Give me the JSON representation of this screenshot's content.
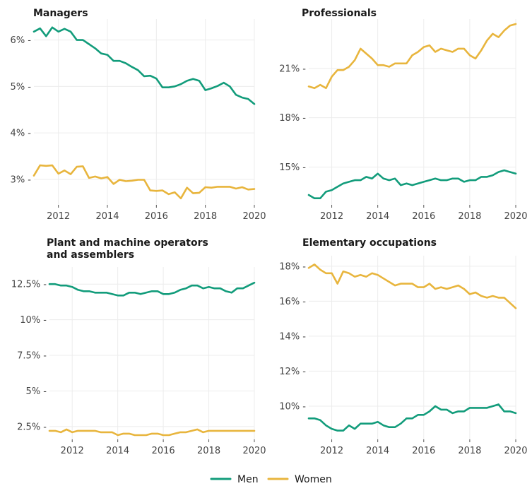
{
  "colors": {
    "men": "#129C7B",
    "women": "#E8B53D"
  },
  "legend": {
    "men_label": "Men",
    "women_label": "Women"
  },
  "chart_data": [
    {
      "type": "line",
      "title": "Managers",
      "y_format": "pct0",
      "xlim": [
        2011.0,
        2020.0
      ],
      "ylim": [
        2.45,
        6.45
      ],
      "x_ticks": [
        2012,
        2014,
        2016,
        2018,
        2020
      ],
      "y_ticks": [
        3,
        4,
        5,
        6
      ],
      "series": [
        {
          "name": "Men",
          "color_key": "men",
          "values": [
            6.18,
            6.25,
            6.08,
            6.27,
            6.18,
            6.24,
            6.18,
            6.0,
            6.0,
            5.91,
            5.82,
            5.71,
            5.68,
            5.55,
            5.55,
            5.5,
            5.42,
            5.35,
            5.22,
            5.23,
            5.17,
            4.98,
            4.98,
            5.0,
            5.05,
            5.12,
            5.16,
            5.12,
            4.92,
            4.96,
            5.01,
            5.08,
            5.0,
            4.82,
            4.76,
            4.73,
            4.62
          ]
        },
        {
          "name": "Women",
          "color_key": "women",
          "values": [
            3.08,
            3.3,
            3.29,
            3.3,
            3.12,
            3.19,
            3.11,
            3.27,
            3.28,
            3.03,
            3.06,
            3.02,
            3.05,
            2.9,
            2.99,
            2.96,
            2.97,
            2.99,
            2.99,
            2.76,
            2.75,
            2.76,
            2.68,
            2.72,
            2.59,
            2.82,
            2.7,
            2.71,
            2.83,
            2.82,
            2.84,
            2.84,
            2.84,
            2.8,
            2.83,
            2.78,
            2.79
          ]
        }
      ]
    },
    {
      "type": "line",
      "title": "Professionals",
      "y_format": "pct0",
      "xlim": [
        2011.0,
        2020.0
      ],
      "ylim": [
        12.7,
        24.0
      ],
      "x_ticks": [
        2012,
        2014,
        2016,
        2018,
        2020
      ],
      "y_ticks": [
        15,
        18,
        21
      ],
      "series": [
        {
          "name": "Men",
          "color_key": "men",
          "values": [
            13.3,
            13.1,
            13.1,
            13.5,
            13.6,
            13.8,
            14.0,
            14.1,
            14.2,
            14.2,
            14.4,
            14.3,
            14.6,
            14.3,
            14.2,
            14.3,
            13.9,
            14.0,
            13.9,
            14.0,
            14.1,
            14.2,
            14.3,
            14.2,
            14.2,
            14.3,
            14.3,
            14.1,
            14.2,
            14.2,
            14.4,
            14.4,
            14.5,
            14.7,
            14.8,
            14.7,
            14.6
          ]
        },
        {
          "name": "Women",
          "color_key": "women",
          "values": [
            19.9,
            19.8,
            20.0,
            19.8,
            20.5,
            20.9,
            20.9,
            21.1,
            21.5,
            22.2,
            21.9,
            21.6,
            21.2,
            21.2,
            21.1,
            21.3,
            21.3,
            21.3,
            21.8,
            22.0,
            22.3,
            22.4,
            22.0,
            22.2,
            22.1,
            22.0,
            22.2,
            22.2,
            21.8,
            21.6,
            22.1,
            22.7,
            23.1,
            22.9,
            23.3,
            23.6,
            23.7
          ]
        }
      ]
    },
    {
      "type": "line",
      "title": "Plant and machine operators and assemblers",
      "title_lines": [
        "Plant and machine operators",
        "and assemblers"
      ],
      "y_format": "pct1",
      "xlim": [
        2011.0,
        2020.0
      ],
      "ylim": [
        1.6,
        13.7
      ],
      "x_ticks": [
        2012,
        2014,
        2016,
        2018,
        2020
      ],
      "y_ticks": [
        2.5,
        5,
        7.5,
        10,
        12.5
      ],
      "series": [
        {
          "name": "Men",
          "color_key": "men",
          "values": [
            12.5,
            12.5,
            12.4,
            12.4,
            12.3,
            12.1,
            12.0,
            12.0,
            11.9,
            11.9,
            11.9,
            11.8,
            11.7,
            11.7,
            11.9,
            11.9,
            11.8,
            11.9,
            12.0,
            12.0,
            11.8,
            11.8,
            11.9,
            12.1,
            12.2,
            12.4,
            12.4,
            12.2,
            12.3,
            12.2,
            12.2,
            12.0,
            11.9,
            12.2,
            12.2,
            12.4,
            12.6
          ]
        },
        {
          "name": "Women",
          "color_key": "women",
          "values": [
            2.2,
            2.2,
            2.1,
            2.3,
            2.1,
            2.2,
            2.2,
            2.2,
            2.2,
            2.1,
            2.1,
            2.1,
            1.9,
            2.0,
            2.0,
            1.9,
            1.9,
            1.9,
            2.0,
            2.0,
            1.9,
            1.9,
            2.0,
            2.1,
            2.1,
            2.2,
            2.3,
            2.1,
            2.2,
            2.2,
            2.2,
            2.2,
            2.2,
            2.2,
            2.2,
            2.2,
            2.2
          ]
        }
      ]
    },
    {
      "type": "line",
      "title": "Elementary occupations",
      "y_format": "pct0",
      "xlim": [
        2011.0,
        2020.0
      ],
      "ylim": [
        8.1,
        18.6
      ],
      "x_ticks": [
        2012,
        2014,
        2016,
        2018,
        2020
      ],
      "y_ticks": [
        10,
        12,
        14,
        16,
        18
      ],
      "series": [
        {
          "name": "Men",
          "color_key": "men",
          "values": [
            9.3,
            9.3,
            9.2,
            8.9,
            8.7,
            8.6,
            8.6,
            8.9,
            8.7,
            9.0,
            9.0,
            9.0,
            9.1,
            8.9,
            8.8,
            8.8,
            9.0,
            9.3,
            9.3,
            9.5,
            9.5,
            9.7,
            10.0,
            9.8,
            9.8,
            9.6,
            9.7,
            9.7,
            9.9,
            9.9,
            9.9,
            9.9,
            10.0,
            10.1,
            9.7,
            9.7,
            9.6
          ]
        },
        {
          "name": "Women",
          "color_key": "women",
          "values": [
            17.9,
            18.1,
            17.8,
            17.6,
            17.6,
            17.0,
            17.7,
            17.6,
            17.4,
            17.5,
            17.4,
            17.6,
            17.5,
            17.3,
            17.1,
            16.9,
            17.0,
            17.0,
            17.0,
            16.8,
            16.8,
            17.0,
            16.7,
            16.8,
            16.7,
            16.8,
            16.9,
            16.7,
            16.4,
            16.5,
            16.3,
            16.2,
            16.3,
            16.2,
            16.2,
            15.9,
            15.6
          ]
        }
      ]
    }
  ]
}
